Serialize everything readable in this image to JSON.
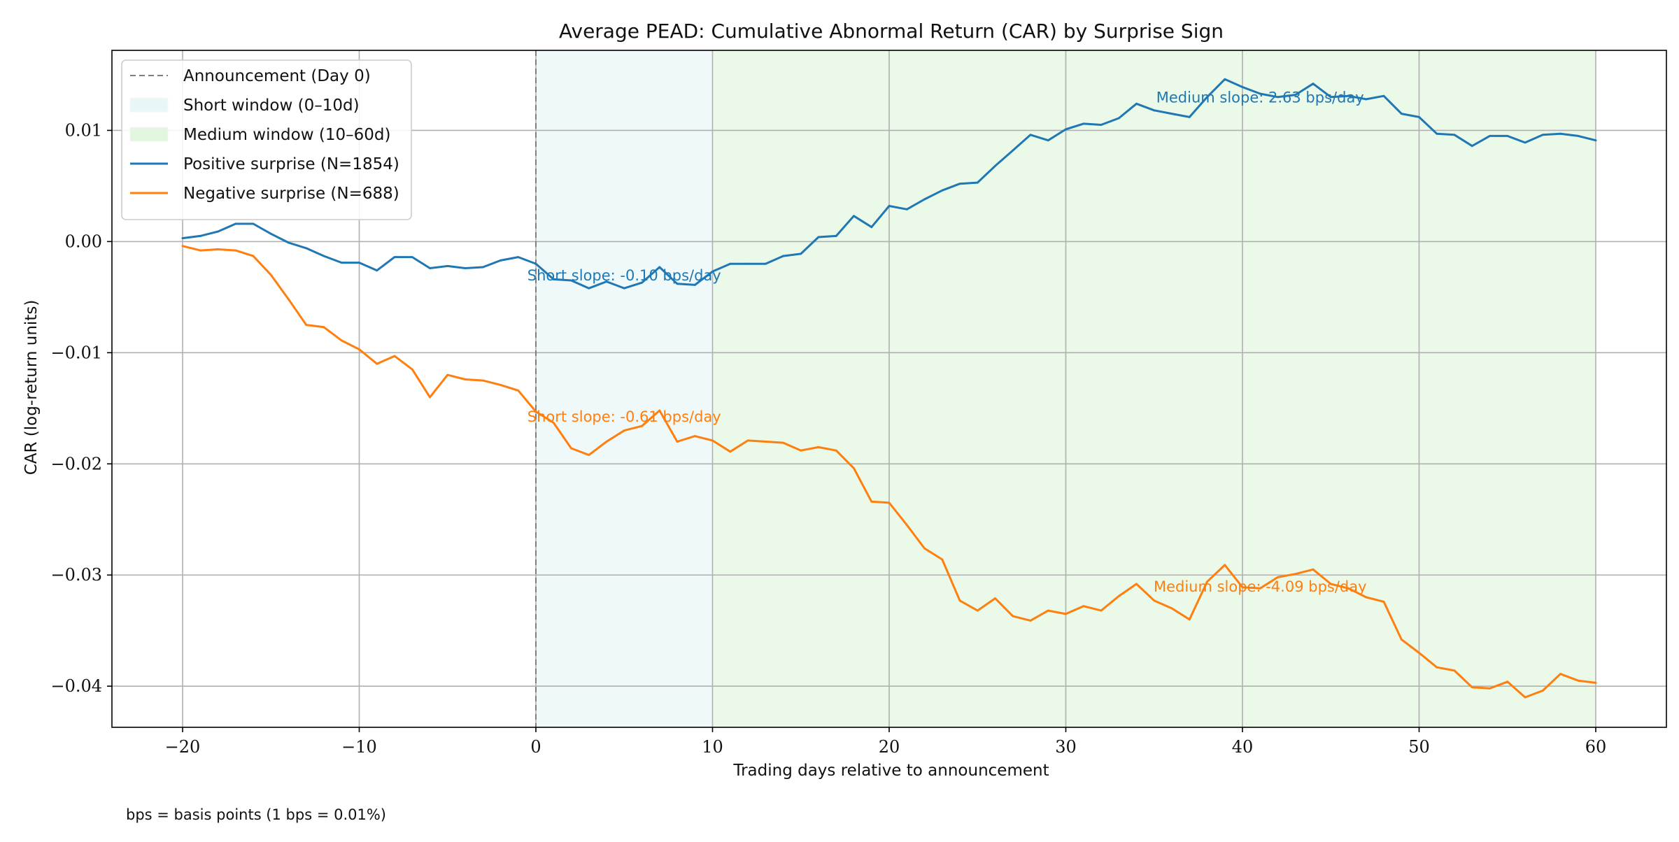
{
  "chart_data": {
    "type": "line",
    "title": "Average PEAD: Cumulative Abnormal Return (CAR) by Surprise Sign",
    "xlabel": "Trading days relative to announcement",
    "ylabel": "CAR (log-return units)",
    "footnote": "bps = basis points (1 bps = 0.01%)",
    "xlim": [
      -24,
      64
    ],
    "ylim": [
      -0.0437,
      0.0172
    ],
    "x_ticks": [
      -20,
      -10,
      0,
      10,
      20,
      30,
      40,
      50,
      60
    ],
    "x_tick_labels": [
      "−20",
      "−10",
      "0",
      "10",
      "20",
      "30",
      "40",
      "50",
      "60"
    ],
    "y_ticks": [
      0.01,
      0.0,
      -0.01,
      -0.02,
      -0.03,
      -0.04
    ],
    "y_tick_labels": [
      "0.01",
      "0.00",
      "−0.01",
      "−0.02",
      "−0.03",
      "−0.04"
    ],
    "grid": true,
    "legend_position": "top-left",
    "announcement_day": 0,
    "short_window": [
      0,
      10
    ],
    "medium_window": [
      10,
      60
    ],
    "legend": [
      {
        "label": "Announcement (Day 0)",
        "kind": "dashed",
        "color": "#7f7f7f"
      },
      {
        "label": "Short window (0–10d)",
        "kind": "patch",
        "color": "#e9f6f7"
      },
      {
        "label": "Medium window (10–60d)",
        "kind": "patch",
        "color": "#e3f6df"
      },
      {
        "label": "Positive surprise (N=1854)",
        "kind": "line",
        "color": "#1f77b4"
      },
      {
        "label": "Negative surprise (N=688)",
        "kind": "line",
        "color": "#ff7f0e"
      }
    ],
    "annotations": [
      {
        "text": "Medium slope: 2.63 bps/day",
        "x": 41,
        "y": 0.0125,
        "color": "#1f77b4"
      },
      {
        "text": "Short slope: -0.10 bps/day",
        "x": 5,
        "y": -0.0035,
        "color": "#1f77b4"
      },
      {
        "text": "Short slope: -0.61 bps/day",
        "x": 5,
        "y": -0.0162,
        "color": "#ff7f0e"
      },
      {
        "text": "Medium slope: -4.09 bps/day",
        "x": 41,
        "y": -0.0315,
        "color": "#ff7f0e"
      }
    ],
    "x": [
      -20,
      -19,
      -18,
      -17,
      -16,
      -15,
      -14,
      -13,
      -12,
      -11,
      -10,
      -9,
      -8,
      -7,
      -6,
      -5,
      -4,
      -3,
      -2,
      -1,
      0,
      1,
      2,
      3,
      4,
      5,
      6,
      7,
      8,
      9,
      10,
      11,
      12,
      13,
      14,
      15,
      16,
      17,
      18,
      19,
      20,
      21,
      22,
      23,
      24,
      25,
      26,
      27,
      28,
      29,
      30,
      31,
      32,
      33,
      34,
      35,
      36,
      37,
      38,
      39,
      40,
      41,
      42,
      43,
      44,
      45,
      46,
      47,
      48,
      49,
      50,
      51,
      52,
      53,
      54,
      55,
      56,
      57,
      58,
      59,
      60
    ],
    "series": [
      {
        "name": "Positive surprise (N=1854)",
        "color": "#1f77b4",
        "values": [
          0.0003,
          0.0005,
          0.0009,
          0.0016,
          0.0016,
          0.0007,
          -0.0001,
          -0.0006,
          -0.0013,
          -0.0019,
          -0.0019,
          -0.0026,
          -0.0014,
          -0.0014,
          -0.0024,
          -0.0022,
          -0.0024,
          -0.0023,
          -0.0017,
          -0.0014,
          -0.002,
          -0.0034,
          -0.0035,
          -0.0042,
          -0.0036,
          -0.0042,
          -0.0037,
          -0.0023,
          -0.0038,
          -0.0039,
          -0.0027,
          -0.002,
          -0.002,
          -0.002,
          -0.0013,
          -0.0011,
          0.0004,
          0.0005,
          0.0023,
          0.0013,
          0.0032,
          0.0029,
          0.0038,
          0.0046,
          0.0052,
          0.0053,
          0.0068,
          0.0082,
          0.0096,
          0.0091,
          0.0101,
          0.0106,
          0.0105,
          0.0111,
          0.0124,
          0.0118,
          0.0115,
          0.0112,
          0.013,
          0.0146,
          0.0139,
          0.0133,
          0.013,
          0.0132,
          0.0142,
          0.013,
          0.0131,
          0.0128,
          0.0131,
          0.0115,
          0.0112,
          0.0097,
          0.0096,
          0.0086,
          0.0095,
          0.0095,
          0.0089,
          0.0096,
          0.0097,
          0.0095,
          0.0091
        ]
      },
      {
        "name": "Negative surprise (N=688)",
        "color": "#ff7f0e",
        "values": [
          -0.0004,
          -0.0008,
          -0.0007,
          -0.0008,
          -0.0013,
          -0.003,
          -0.0052,
          -0.0075,
          -0.0077,
          -0.0089,
          -0.0097,
          -0.011,
          -0.0103,
          -0.0115,
          -0.014,
          -0.012,
          -0.0124,
          -0.0125,
          -0.0129,
          -0.0134,
          -0.0153,
          -0.0163,
          -0.0186,
          -0.0192,
          -0.018,
          -0.017,
          -0.0166,
          -0.0152,
          -0.018,
          -0.0175,
          -0.0179,
          -0.0189,
          -0.0179,
          -0.018,
          -0.0181,
          -0.0188,
          -0.0185,
          -0.0188,
          -0.0204,
          -0.0234,
          -0.0235,
          -0.0255,
          -0.0276,
          -0.0286,
          -0.0323,
          -0.0332,
          -0.0321,
          -0.0337,
          -0.0341,
          -0.0332,
          -0.0335,
          -0.0328,
          -0.0332,
          -0.0319,
          -0.0308,
          -0.0323,
          -0.033,
          -0.034,
          -0.0306,
          -0.0291,
          -0.0311,
          -0.0312,
          -0.0302,
          -0.0299,
          -0.0295,
          -0.0308,
          -0.0312,
          -0.032,
          -0.0324,
          -0.0358,
          -0.037,
          -0.0383,
          -0.0386,
          -0.0401,
          -0.0402,
          -0.0396,
          -0.041,
          -0.0404,
          -0.0389,
          -0.0395,
          -0.0397
        ]
      }
    ]
  }
}
